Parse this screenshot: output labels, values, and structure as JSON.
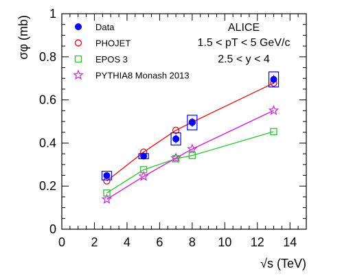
{
  "chart_data": {
    "type": "scatter",
    "title": "",
    "xlabel": "√s (TeV)",
    "ylabel": "σφ (mb)",
    "xlim": [
      0,
      15
    ],
    "ylim": [
      0,
      1
    ],
    "x_ticks": [
      "0",
      "2",
      "4",
      "6",
      "8",
      "10",
      "12",
      "14"
    ],
    "y_ticks": [
      "0",
      "0.2",
      "0.4",
      "0.6",
      "0.8",
      "1"
    ],
    "annotations": [
      "ALICE",
      "1.5 < pT < 5 GeV/c",
      "2.5 < y < 4"
    ],
    "legend_position": "top-left",
    "series": [
      {
        "name": "Data",
        "marker": "filled-circle",
        "color": "#0000ff",
        "x": [
          2.76,
          5.02,
          7.0,
          8.0,
          13.0
        ],
        "y": [
          0.249,
          0.339,
          0.419,
          0.495,
          0.695
        ],
        "yerr": [
          0.015,
          0.01,
          0.02,
          0.02,
          0.02
        ],
        "syst": [
          0.02,
          0.012,
          0.028,
          0.034,
          0.035
        ]
      },
      {
        "name": "PHOJET",
        "marker": "open-circle",
        "color": "#e8171c",
        "line": true,
        "x": [
          2.76,
          5.02,
          7.0,
          8.0,
          13.0
        ],
        "y": [
          0.224,
          0.358,
          0.459,
          0.497,
          0.678
        ]
      },
      {
        "name": "EPOS 3",
        "marker": "open-square",
        "color": "#3cc23c",
        "line": true,
        "x": [
          2.76,
          5.02,
          7.0,
          8.0,
          13.0
        ],
        "y": [
          0.168,
          0.276,
          0.327,
          0.342,
          0.453
        ]
      },
      {
        "name": "PYTHIA8 Monash 2013",
        "marker": "open-star",
        "color": "#cc22dd",
        "line": true,
        "x": [
          2.76,
          5.02,
          7.0,
          8.0,
          13.0
        ],
        "y": [
          0.139,
          0.245,
          0.33,
          0.372,
          0.551
        ]
      }
    ]
  }
}
